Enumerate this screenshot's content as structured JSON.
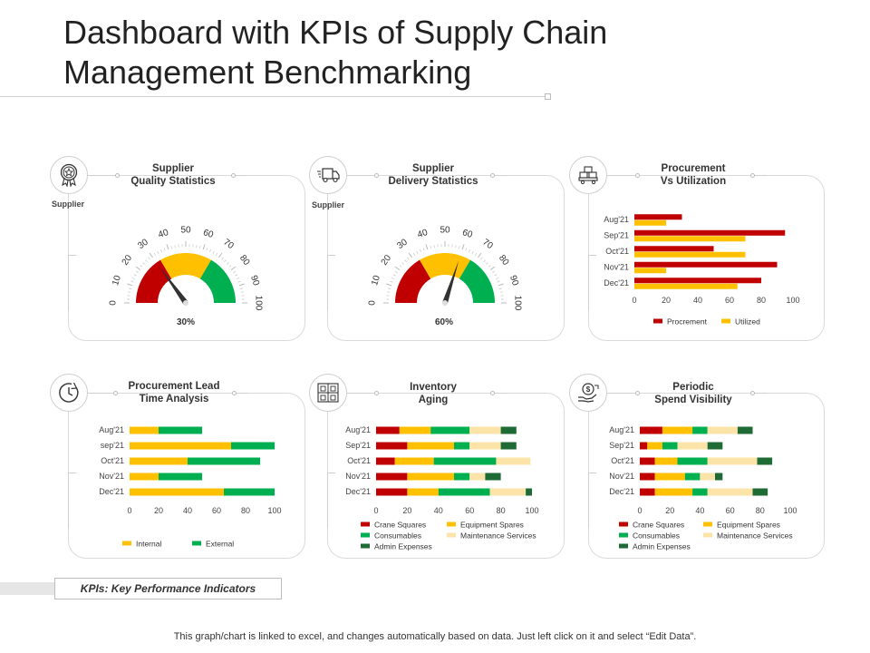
{
  "title_line1": "Dashboard with KPIs of Supply Chain",
  "title_line2": "Management Benchmarking",
  "colors": {
    "red": "#c00000",
    "amber": "#ffc000",
    "green": "#00b050",
    "lightyellow": "#fce4a8",
    "darkgreen": "#1e6b35"
  },
  "panels": {
    "quality": {
      "title": "Supplier\nQuality Statistics",
      "sub": "Supplier",
      "icon": "award-badge-icon",
      "value_label": "30%"
    },
    "delivery": {
      "title": "Supplier\nDelivery Statistics",
      "sub": "Supplier",
      "icon": "delivery-truck-icon",
      "value_label": "60%"
    },
    "procurement": {
      "title": "Procurement\nVs Utilization",
      "icon": "pallet-boxes-icon"
    },
    "leadtime": {
      "title": "Procurement Lead\nTime Analysis",
      "icon": "clock-icon"
    },
    "inventory": {
      "title": "Inventory\nAging",
      "icon": "warehouse-boxes-icon"
    },
    "spend": {
      "title": "Periodic\nSpend Visibility",
      "icon": "money-hand-icon"
    }
  },
  "chart_data": [
    {
      "id": "quality",
      "type": "gauge",
      "ticks": [
        "0",
        "10",
        "20",
        "30",
        "40",
        "50",
        "60",
        "70",
        "80",
        "90",
        "100"
      ],
      "value": 30,
      "bands": [
        {
          "from": 0,
          "to": 33,
          "color": "red"
        },
        {
          "from": 33,
          "to": 67,
          "color": "amber"
        },
        {
          "from": 67,
          "to": 100,
          "color": "green"
        }
      ]
    },
    {
      "id": "delivery",
      "type": "gauge",
      "ticks": [
        "0",
        "10",
        "20",
        "30",
        "40",
        "50",
        "60",
        "70",
        "80",
        "90",
        "100"
      ],
      "value": 60,
      "bands": [
        {
          "from": 0,
          "to": 33,
          "color": "red"
        },
        {
          "from": 33,
          "to": 67,
          "color": "amber"
        },
        {
          "from": 67,
          "to": 100,
          "color": "green"
        }
      ]
    },
    {
      "id": "procurement",
      "type": "bar",
      "orientation": "horizontal",
      "grouped": true,
      "categories": [
        "Aug'21",
        "Sep'21",
        "Oct'21",
        "Nov'21",
        "Dec'21"
      ],
      "xticks": [
        "0",
        "20",
        "40",
        "60",
        "80",
        "100"
      ],
      "xlim": [
        0,
        100
      ],
      "series": [
        {
          "name": "Procrement",
          "color": "red",
          "values": [
            30,
            95,
            50,
            90,
            80
          ]
        },
        {
          "name": "Utilized",
          "color": "amber",
          "values": [
            20,
            70,
            70,
            20,
            65
          ]
        }
      ]
    },
    {
      "id": "leadtime",
      "type": "bar",
      "orientation": "horizontal",
      "stacked": true,
      "categories": [
        "Aug'21",
        "sep'21",
        "Oct'21",
        "Nov'21",
        "Dec'21"
      ],
      "xticks": [
        "0",
        "20",
        "40",
        "60",
        "80",
        "100"
      ],
      "xlim": [
        0,
        100
      ],
      "series": [
        {
          "name": "Internal",
          "color": "amber",
          "values": [
            20,
            70,
            40,
            20,
            65
          ]
        },
        {
          "name": "External",
          "color": "green",
          "values": [
            30,
            30,
            50,
            30,
            35
          ]
        }
      ]
    },
    {
      "id": "inventory",
      "type": "bar",
      "orientation": "horizontal",
      "stacked": true,
      "categories": [
        "Aug'21",
        "Sep'21",
        "Oct'21",
        "Nov'21",
        "Dec'21"
      ],
      "xticks": [
        "0",
        "20",
        "40",
        "60",
        "80",
        "100"
      ],
      "xlim": [
        0,
        100
      ],
      "series": [
        {
          "name": "Crane Squares",
          "color": "red",
          "values": [
            15,
            20,
            12,
            20,
            20
          ]
        },
        {
          "name": "Equipment Spares",
          "color": "amber",
          "values": [
            20,
            30,
            25,
            30,
            20
          ]
        },
        {
          "name": "Consumables",
          "color": "green",
          "values": [
            25,
            10,
            40,
            10,
            33
          ]
        },
        {
          "name": "Maintenance Services",
          "color": "lightyellow",
          "values": [
            20,
            20,
            22,
            10,
            23
          ]
        },
        {
          "name": "Admin Expenses",
          "color": "darkgreen",
          "values": [
            10,
            10,
            0,
            10,
            4
          ]
        }
      ]
    },
    {
      "id": "spend",
      "type": "bar",
      "orientation": "horizontal",
      "stacked": true,
      "categories": [
        "Aug'21",
        "Sep'21",
        "Oct'21",
        "Nov'21",
        "Dec'21"
      ],
      "xticks": [
        "0",
        "20",
        "40",
        "60",
        "80",
        "100"
      ],
      "xlim": [
        0,
        100
      ],
      "series": [
        {
          "name": "Crane Squares",
          "color": "red",
          "values": [
            15,
            5,
            10,
            10,
            10
          ]
        },
        {
          "name": "Equipment Spares",
          "color": "amber",
          "values": [
            20,
            10,
            15,
            20,
            25
          ]
        },
        {
          "name": "Consumables",
          "color": "green",
          "values": [
            10,
            10,
            20,
            10,
            10
          ]
        },
        {
          "name": "Maintenance Services",
          "color": "lightyellow",
          "values": [
            20,
            20,
            33,
            10,
            30
          ]
        },
        {
          "name": "Admin Expenses",
          "color": "darkgreen",
          "values": [
            10,
            10,
            10,
            5,
            10
          ]
        }
      ]
    }
  ],
  "kpi_label": "KPIs: Key Performance Indicators",
  "footer": "This graph/chart is linked to excel, and changes automatically based on data. Just left click on it and select “Edit Data”."
}
